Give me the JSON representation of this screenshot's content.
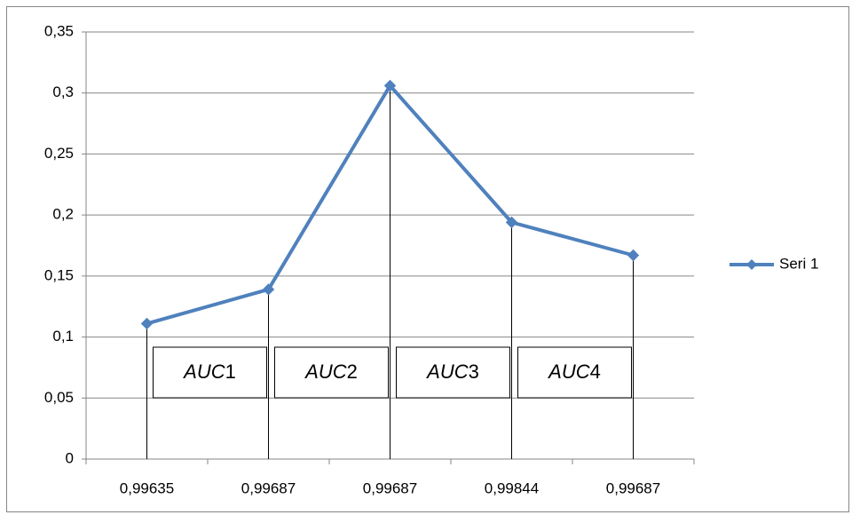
{
  "chart_data": {
    "type": "line",
    "categories": [
      "0,99635",
      "0,99687",
      "0,99687",
      "0,99844",
      "0,99687"
    ],
    "series": [
      {
        "name": "Seri 1",
        "color": "#4f81bd",
        "values": [
          0.111,
          0.139,
          0.306,
          0.194,
          0.167
        ]
      }
    ],
    "ylim": [
      0,
      0.35
    ],
    "yticks": [
      0,
      {
        "value": 0.05,
        "label": "0,05"
      },
      {
        "value": 0.1,
        "label": "0,1"
      },
      {
        "value": 0.15,
        "label": "0,15"
      },
      {
        "value": 0.2,
        "label": "0,2"
      },
      {
        "value": 0.25,
        "label": "0,25"
      },
      {
        "value": 0.3,
        "label": "0,3"
      },
      {
        "value": 0.35,
        "label": "0,35"
      }
    ],
    "grid": true,
    "legend": "right",
    "annotations": [
      [
        "AUC",
        "1"
      ],
      [
        "AUC",
        "2"
      ],
      [
        "AUC",
        "3"
      ],
      [
        "AUC",
        "4"
      ]
    ]
  }
}
